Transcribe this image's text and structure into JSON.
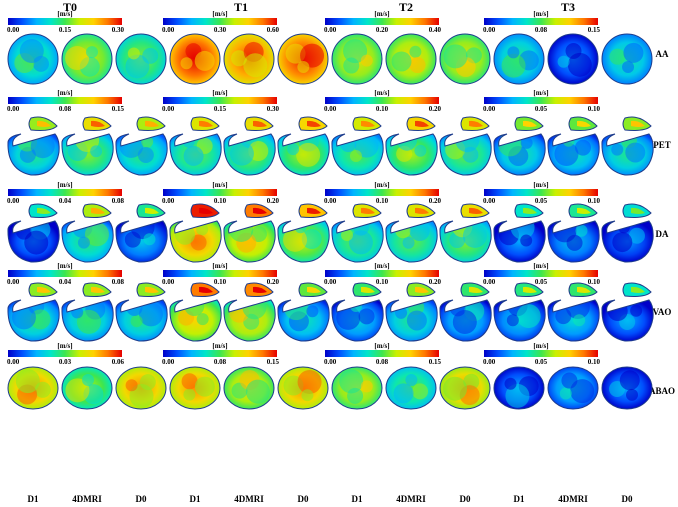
{
  "time_points": [
    "T0",
    "T1",
    "T2",
    "T3"
  ],
  "locations": [
    "AA",
    "PET",
    "DA",
    "VAO",
    "ABAO"
  ],
  "columns": [
    "D1",
    "4DMRI",
    "D0",
    "D1",
    "4DMRI",
    "D0",
    "D1",
    "4DMRI",
    "D0",
    "D1",
    "4DMRI",
    "D0"
  ],
  "unit": "[m/s]",
  "colormap": [
    "#0000c8",
    "#0050ff",
    "#00b4ff",
    "#00e6c8",
    "#3ce650",
    "#c8f000",
    "#ffd200",
    "#ff7800",
    "#e60000"
  ],
  "scales": [
    [
      [
        "0.00",
        "0.15",
        "0.30"
      ],
      [
        "0.00",
        "0.30",
        "0.60"
      ],
      [
        "0.00",
        "0.20",
        "0.40"
      ],
      [
        "0.00",
        "0.08",
        "0.15"
      ]
    ],
    [
      [
        "0.00",
        "0.08",
        "0.15"
      ],
      [
        "0.00",
        "0.15",
        "0.30"
      ],
      [
        "0.00",
        "0.10",
        "0.20"
      ],
      [
        "0.00",
        "0.05",
        "0.10"
      ]
    ],
    [
      [
        "0.00",
        "0.04",
        "0.08"
      ],
      [
        "0.00",
        "0.10",
        "0.20"
      ],
      [
        "0.00",
        "0.10",
        "0.20"
      ],
      [
        "0.00",
        "0.05",
        "0.10"
      ]
    ],
    [
      [
        "0.00",
        "0.04",
        "0.08"
      ],
      [
        "0.00",
        "0.10",
        "0.20"
      ],
      [
        "0.00",
        "0.10",
        "0.20"
      ],
      [
        "0.00",
        "0.05",
        "0.10"
      ]
    ],
    [
      [
        "0.00",
        "0.03",
        "0.06"
      ],
      [
        "0.00",
        "0.08",
        "0.15"
      ],
      [
        "0.00",
        "0.08",
        "0.15"
      ],
      [
        "0.00",
        "0.05",
        "0.10"
      ]
    ]
  ],
  "map_levels": [
    [
      [
        0.35,
        0.55,
        0.45
      ],
      [
        0.88,
        0.8,
        0.85
      ],
      [
        0.58,
        0.6,
        0.58
      ],
      [
        0.32,
        0.12,
        0.3
      ]
    ],
    [
      [
        0.33,
        0.45,
        0.35
      ],
      [
        0.42,
        0.45,
        0.48
      ],
      [
        0.4,
        0.48,
        0.42
      ],
      [
        0.3,
        0.28,
        0.32
      ]
    ],
    [
      [
        0.12,
        0.35,
        0.18
      ],
      [
        0.72,
        0.62,
        0.52
      ],
      [
        0.42,
        0.42,
        0.45
      ],
      [
        0.12,
        0.18,
        0.1
      ]
    ],
    [
      [
        0.32,
        0.32,
        0.32
      ],
      [
        0.62,
        0.6,
        0.28
      ],
      [
        0.22,
        0.32,
        0.22
      ],
      [
        0.2,
        0.22,
        0.12
      ]
    ],
    [
      [
        0.72,
        0.5,
        0.72
      ],
      [
        0.72,
        0.6,
        0.72
      ],
      [
        0.58,
        0.4,
        0.7
      ],
      [
        0.12,
        0.22,
        0.12
      ]
    ]
  ]
}
